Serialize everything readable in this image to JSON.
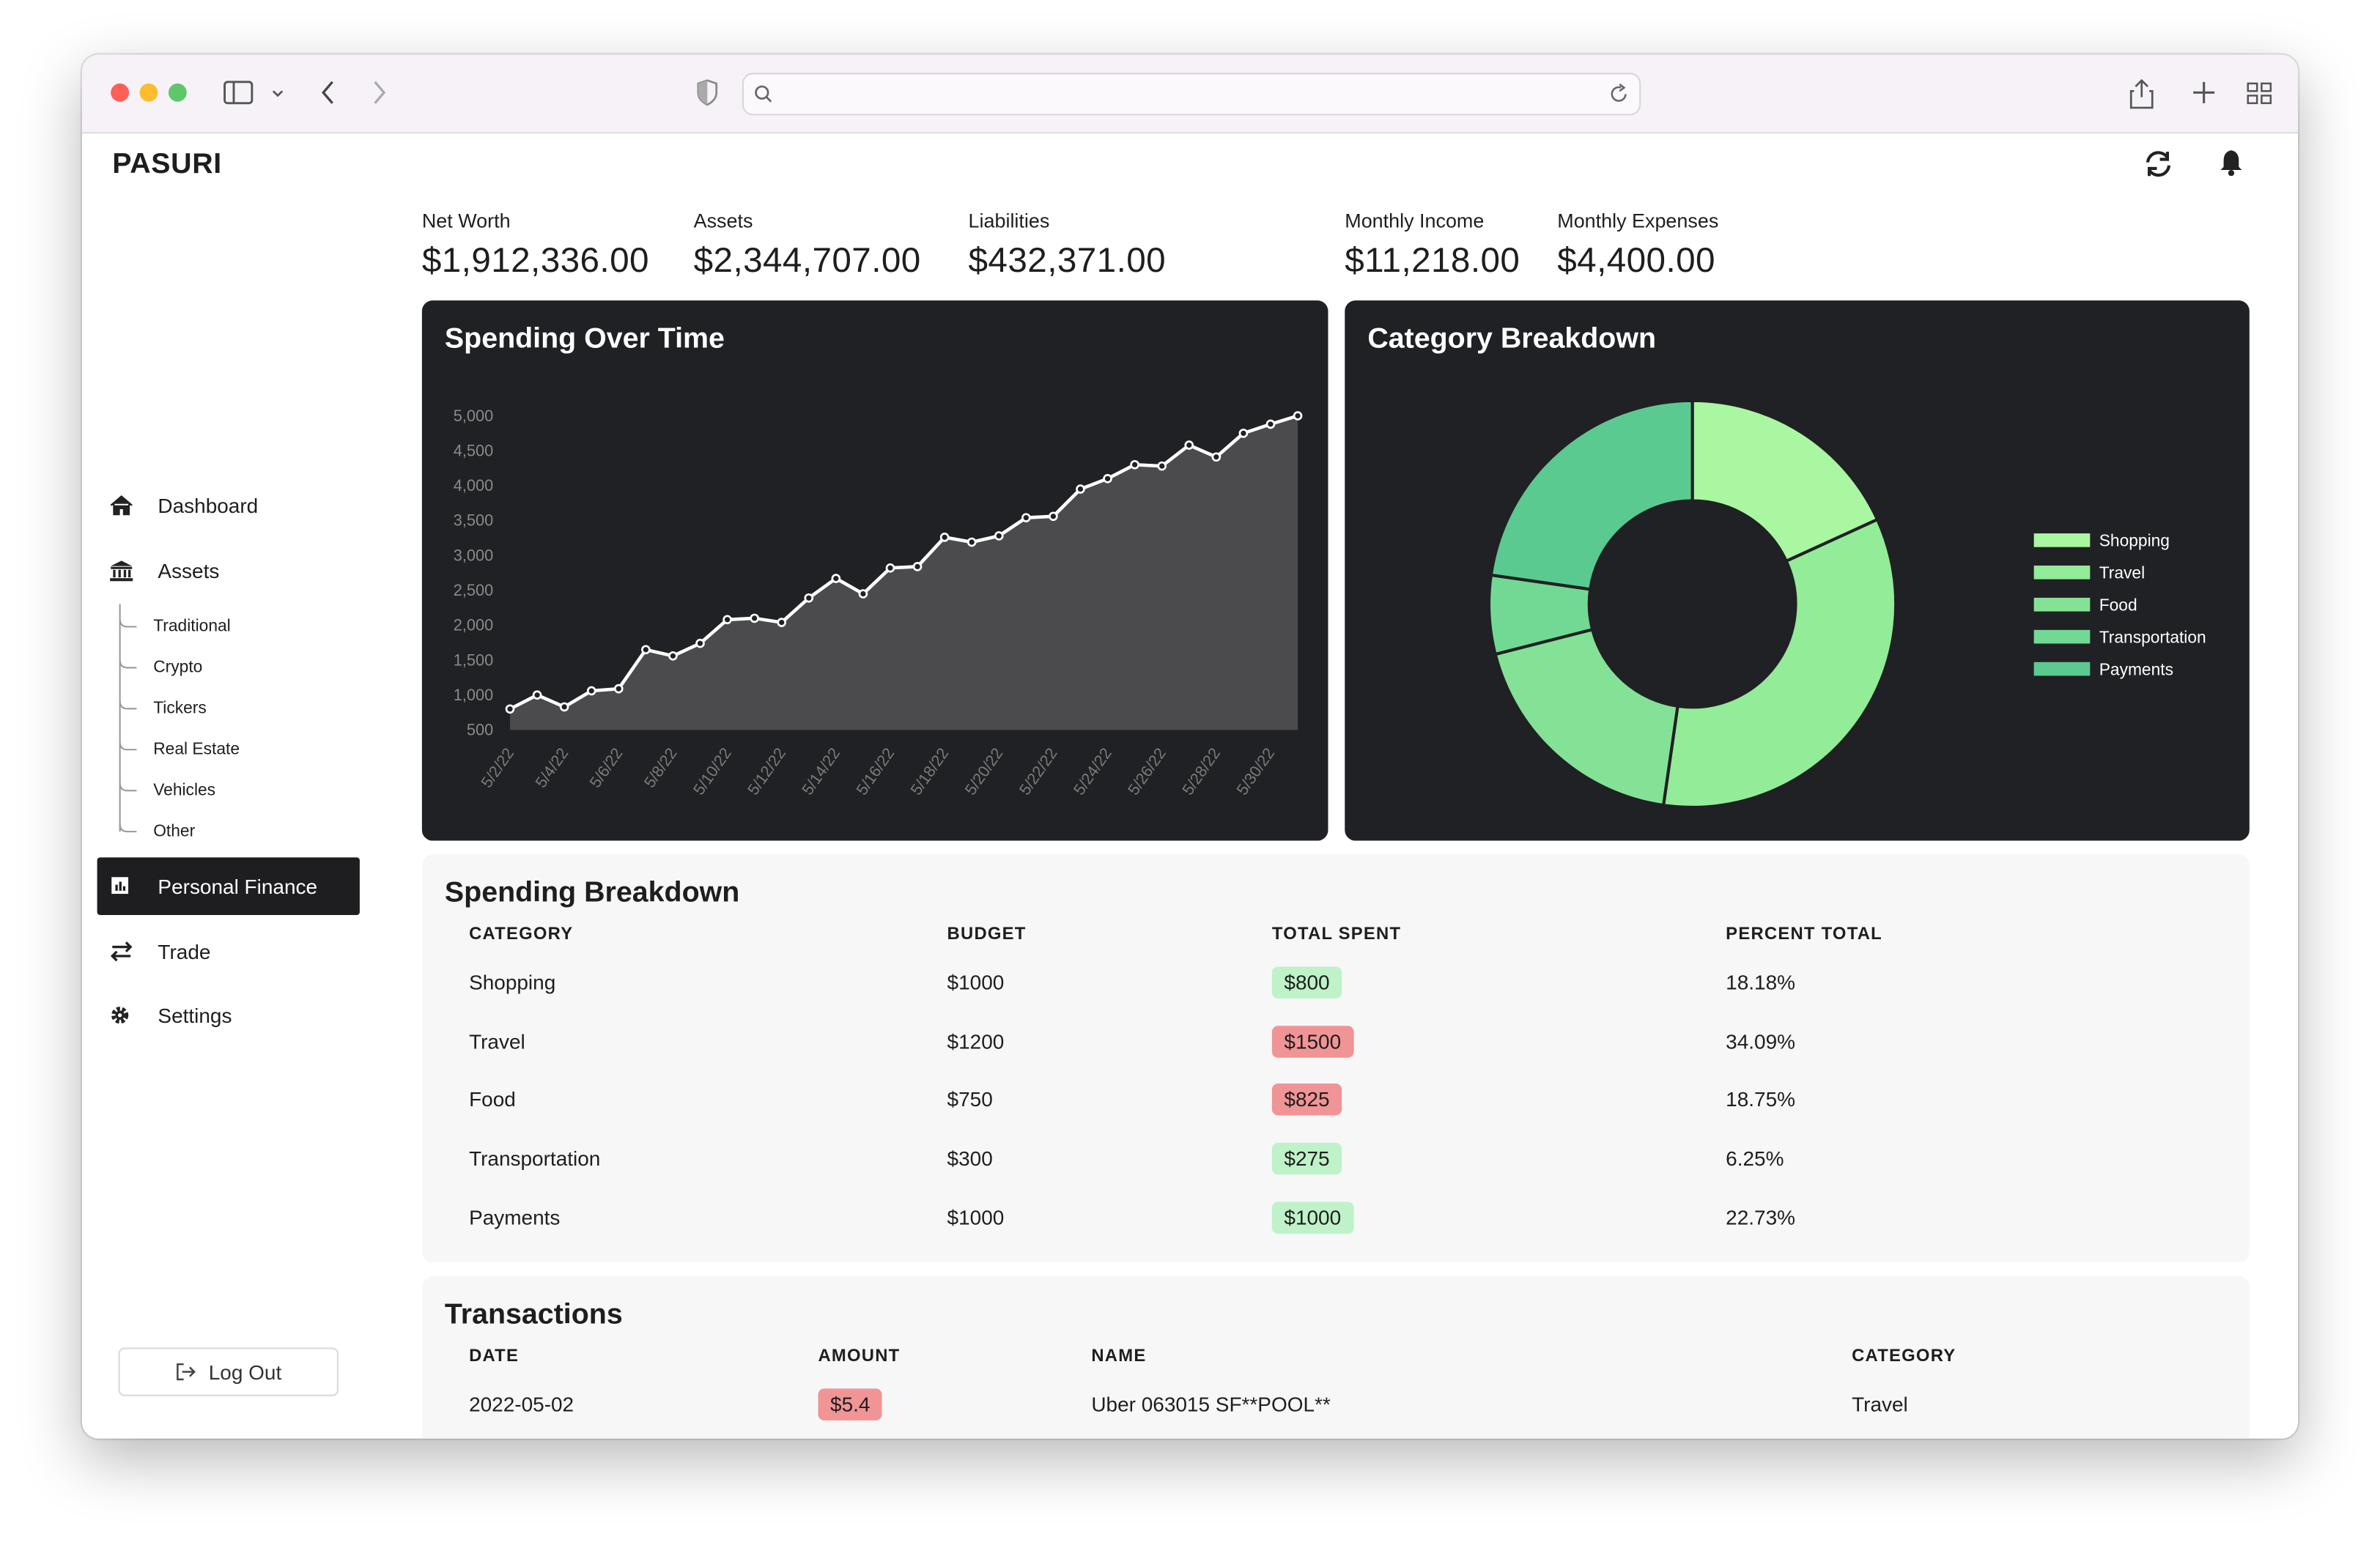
{
  "app": {
    "brand": "PASURI"
  },
  "nav": {
    "dashboard": "Dashboard",
    "assets": "Assets",
    "asset_types": [
      "Traditional",
      "Crypto",
      "Tickers",
      "Real Estate",
      "Vehicles",
      "Other"
    ],
    "personal_finance": "Personal Finance",
    "trade": "Trade",
    "settings": "Settings",
    "logout": "Log Out"
  },
  "summary": [
    {
      "label": "Net Worth",
      "value": "$1,912,336.00"
    },
    {
      "label": "Assets",
      "value": "$2,344,707.00"
    },
    {
      "label": "Liabilities",
      "value": "$432,371.00"
    },
    {
      "label": "Monthly Income",
      "value": "$11,218.00"
    },
    {
      "label": "Monthly Expenses",
      "value": "$4,400.00"
    }
  ],
  "chart_data": [
    {
      "type": "line",
      "title": "Spending Over Time",
      "categories": [
        "5/2/22",
        null,
        "5/4/22",
        null,
        "5/6/22",
        null,
        "5/8/22",
        null,
        "5/10/22",
        null,
        "5/12/22",
        null,
        "5/14/22",
        null,
        "5/16/22",
        null,
        "5/18/22",
        null,
        "5/20/22",
        null,
        "5/22/22",
        null,
        "5/24/22",
        null,
        "5/26/22",
        null,
        "5/28/22",
        null,
        "5/30/22",
        null
      ],
      "values": [
        800,
        1000,
        830,
        1060,
        1090,
        1650,
        1560,
        1740,
        2080,
        2100,
        2040,
        2390,
        2670,
        2450,
        2820,
        2840,
        3260,
        3190,
        3280,
        3540,
        3560,
        3950,
        4100,
        4300,
        4280,
        4580,
        4410,
        4750,
        4880,
        5000
      ],
      "color": "#ffffff",
      "area_color": "#4b4b4e",
      "ylim": [
        500,
        5000
      ],
      "yticks": [
        500,
        {
          "value": 1000,
          "label": "1,000"
        },
        {
          "value": 1500,
          "label": "1,500"
        },
        {
          "value": 2000,
          "label": "2,000"
        },
        {
          "value": 2500,
          "label": "2,500"
        },
        {
          "value": 3000,
          "label": "3,000"
        },
        {
          "value": 3500,
          "label": "3,500"
        },
        {
          "value": 4000,
          "label": "4,000"
        },
        {
          "value": 4500,
          "label": "4,500"
        },
        {
          "value": 5000,
          "label": "5,000"
        }
      ],
      "grid": false
    },
    {
      "type": "donut",
      "title": "Category Breakdown",
      "categories": [
        "Shopping",
        "Travel",
        "Food",
        "Transportation",
        "Payments"
      ],
      "values": [
        800,
        1500,
        825,
        275,
        1000
      ],
      "colors": [
        "#a9f7a0",
        "#93ec98",
        "#84e296",
        "#72d994",
        "#5bca90"
      ],
      "legend": "right"
    }
  ],
  "spending_breakdown": {
    "title": "Spending Breakdown",
    "columns": [
      "CATEGORY",
      "BUDGET",
      "TOTAL SPENT",
      "PERCENT TOTAL"
    ],
    "badge_column": 2,
    "rows": [
      {
        "cells": [
          "Shopping",
          "$1000",
          "$800",
          "18.18%"
        ],
        "badge_color": "#bff2c9"
      },
      {
        "cells": [
          "Travel",
          "$1200",
          "$1500",
          "34.09%"
        ],
        "badge_color": "#f09496"
      },
      {
        "cells": [
          "Food",
          "$750",
          "$825",
          "18.75%"
        ],
        "badge_color": "#f09496"
      },
      {
        "cells": [
          "Transportation",
          "$300",
          "$275",
          "6.25%"
        ],
        "badge_color": "#bff2c9"
      },
      {
        "cells": [
          "Payments",
          "$1000",
          "$1000",
          "22.73%"
        ],
        "badge_color": "#bff2c9"
      }
    ]
  },
  "transactions": {
    "title": "Transactions",
    "columns": [
      "DATE",
      "AMOUNT",
      "NAME",
      "CATEGORY"
    ],
    "badge_column": 1,
    "rows": [
      {
        "cells": [
          "2022-05-02",
          "$5.4",
          "Uber 063015 SF**POOL**",
          "Travel"
        ],
        "badge_color": "#f09496"
      }
    ]
  }
}
